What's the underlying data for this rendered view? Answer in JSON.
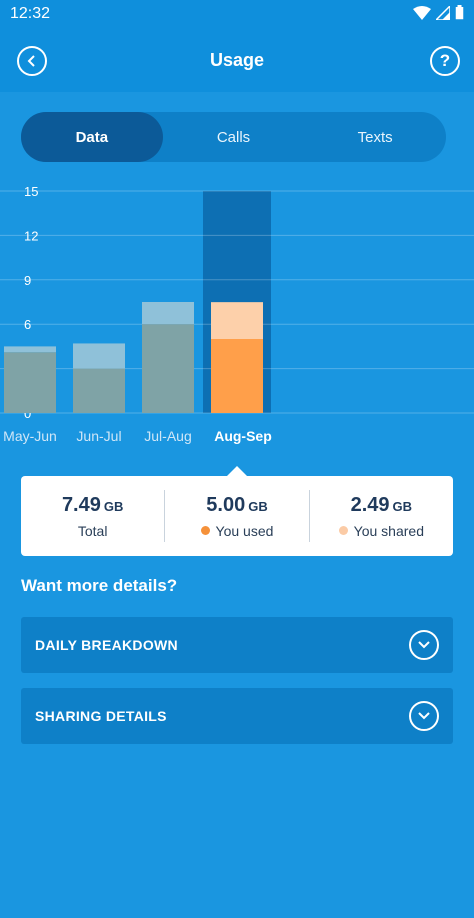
{
  "status": {
    "time": "12:32"
  },
  "header": {
    "title": "Usage",
    "help_label": "?"
  },
  "tabs": [
    {
      "label": "Data",
      "active": true
    },
    {
      "label": "Calls",
      "active": false
    },
    {
      "label": "Texts",
      "active": false
    }
  ],
  "chart_data": {
    "type": "bar",
    "categories": [
      "May-Jun",
      "Jun-Jul",
      "Jul-Aug",
      "Aug-Sep"
    ],
    "selected_index": 3,
    "ylim": [
      0,
      15
    ],
    "yticks": [
      0,
      3,
      6,
      9,
      12,
      15
    ],
    "grid": true,
    "series": [
      {
        "values": [
          4.1,
          3.0,
          6.0,
          5.0
        ]
      },
      {
        "values": [
          0.4,
          1.7,
          1.5,
          2.49
        ]
      }
    ],
    "colors": {
      "used": "#7fa3a6",
      "shared": "#8fc1d9",
      "used_selected": "#ff9f4a",
      "shared_selected": "#fdd0aa",
      "selected_band": "#0d6fb3"
    }
  },
  "summary": {
    "total": {
      "value": "7.49",
      "unit": "GB",
      "label": "Total"
    },
    "used": {
      "value": "5.00",
      "unit": "GB",
      "label": "You used",
      "color": "#f5913a"
    },
    "shared": {
      "value": "2.49",
      "unit": "GB",
      "label": "You shared",
      "color": "#fbcba6"
    }
  },
  "details": {
    "title": "Want more details?",
    "daily_label": "DAILY BREAKDOWN",
    "sharing_label": "SHARING DETAILS"
  }
}
